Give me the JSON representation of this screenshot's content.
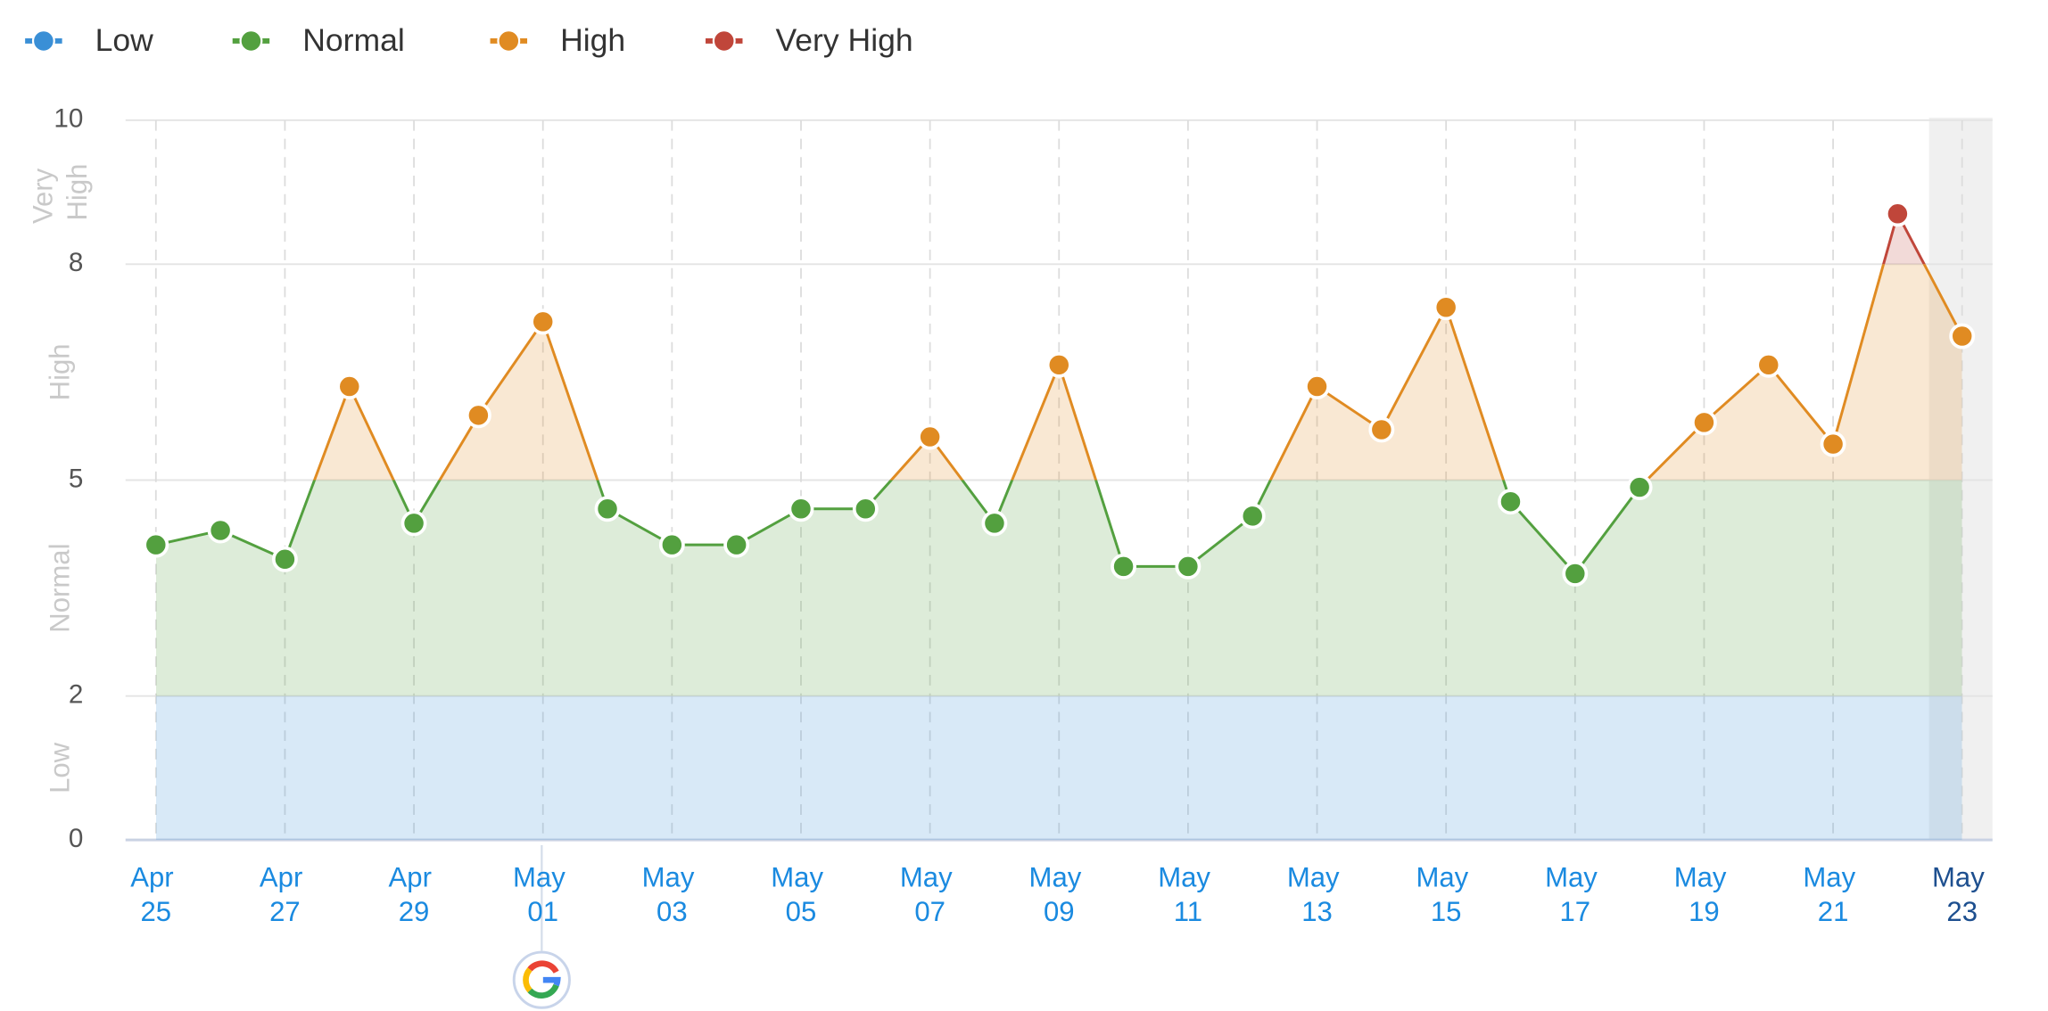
{
  "chart_data": {
    "type": "line",
    "categories": [
      "Apr 25",
      null,
      "Apr 27",
      null,
      "Apr 29",
      null,
      "May 01",
      null,
      "May 03",
      null,
      "May 05",
      null,
      "May 07",
      null,
      "May 09",
      null,
      "May 11",
      null,
      "May 13",
      null,
      "May 15",
      null,
      "May 17",
      null,
      "May 19",
      null,
      "May 21",
      null,
      "May 23"
    ],
    "values": [
      4.1,
      4.3,
      3.9,
      6.3,
      4.4,
      5.9,
      7.2,
      4.6,
      4.1,
      4.1,
      4.6,
      4.6,
      5.6,
      4.4,
      6.6,
      3.8,
      3.8,
      4.5,
      6.3,
      5.7,
      7.4,
      4.7,
      3.7,
      4.9,
      5.8,
      6.6,
      5.5,
      8.7,
      7.0
    ],
    "levels": [
      {
        "name": "Low",
        "color": "#3a8fd6",
        "range": [
          0,
          2
        ]
      },
      {
        "name": "Normal",
        "color": "#53a03f",
        "range": [
          2,
          5
        ]
      },
      {
        "name": "High",
        "color": "#e08b22",
        "range": [
          5,
          8
        ]
      },
      {
        "name": "Very High",
        "color": "#c0463a",
        "range": [
          8,
          10
        ]
      }
    ],
    "ylim": [
      0,
      10
    ],
    "yticks": [
      0,
      2,
      5,
      8,
      10
    ],
    "grid": true
  }
}
